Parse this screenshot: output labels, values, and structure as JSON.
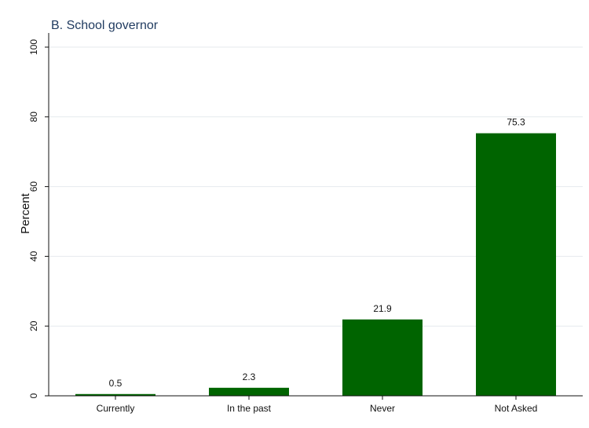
{
  "chart_data": {
    "type": "bar",
    "title": "B. School governor",
    "ylabel": "Percent",
    "xlabel": "",
    "categories": [
      "Currently",
      "In the past",
      "Never",
      "Not Asked"
    ],
    "values": [
      0.5,
      2.3,
      21.9,
      75.3
    ],
    "value_labels": [
      "0.5",
      "2.3",
      "21.9",
      "75.3"
    ],
    "ylim": [
      0,
      100
    ],
    "yticks": [
      0,
      20,
      40,
      60,
      80,
      100
    ],
    "grid": true,
    "bar_color": "#006400"
  }
}
